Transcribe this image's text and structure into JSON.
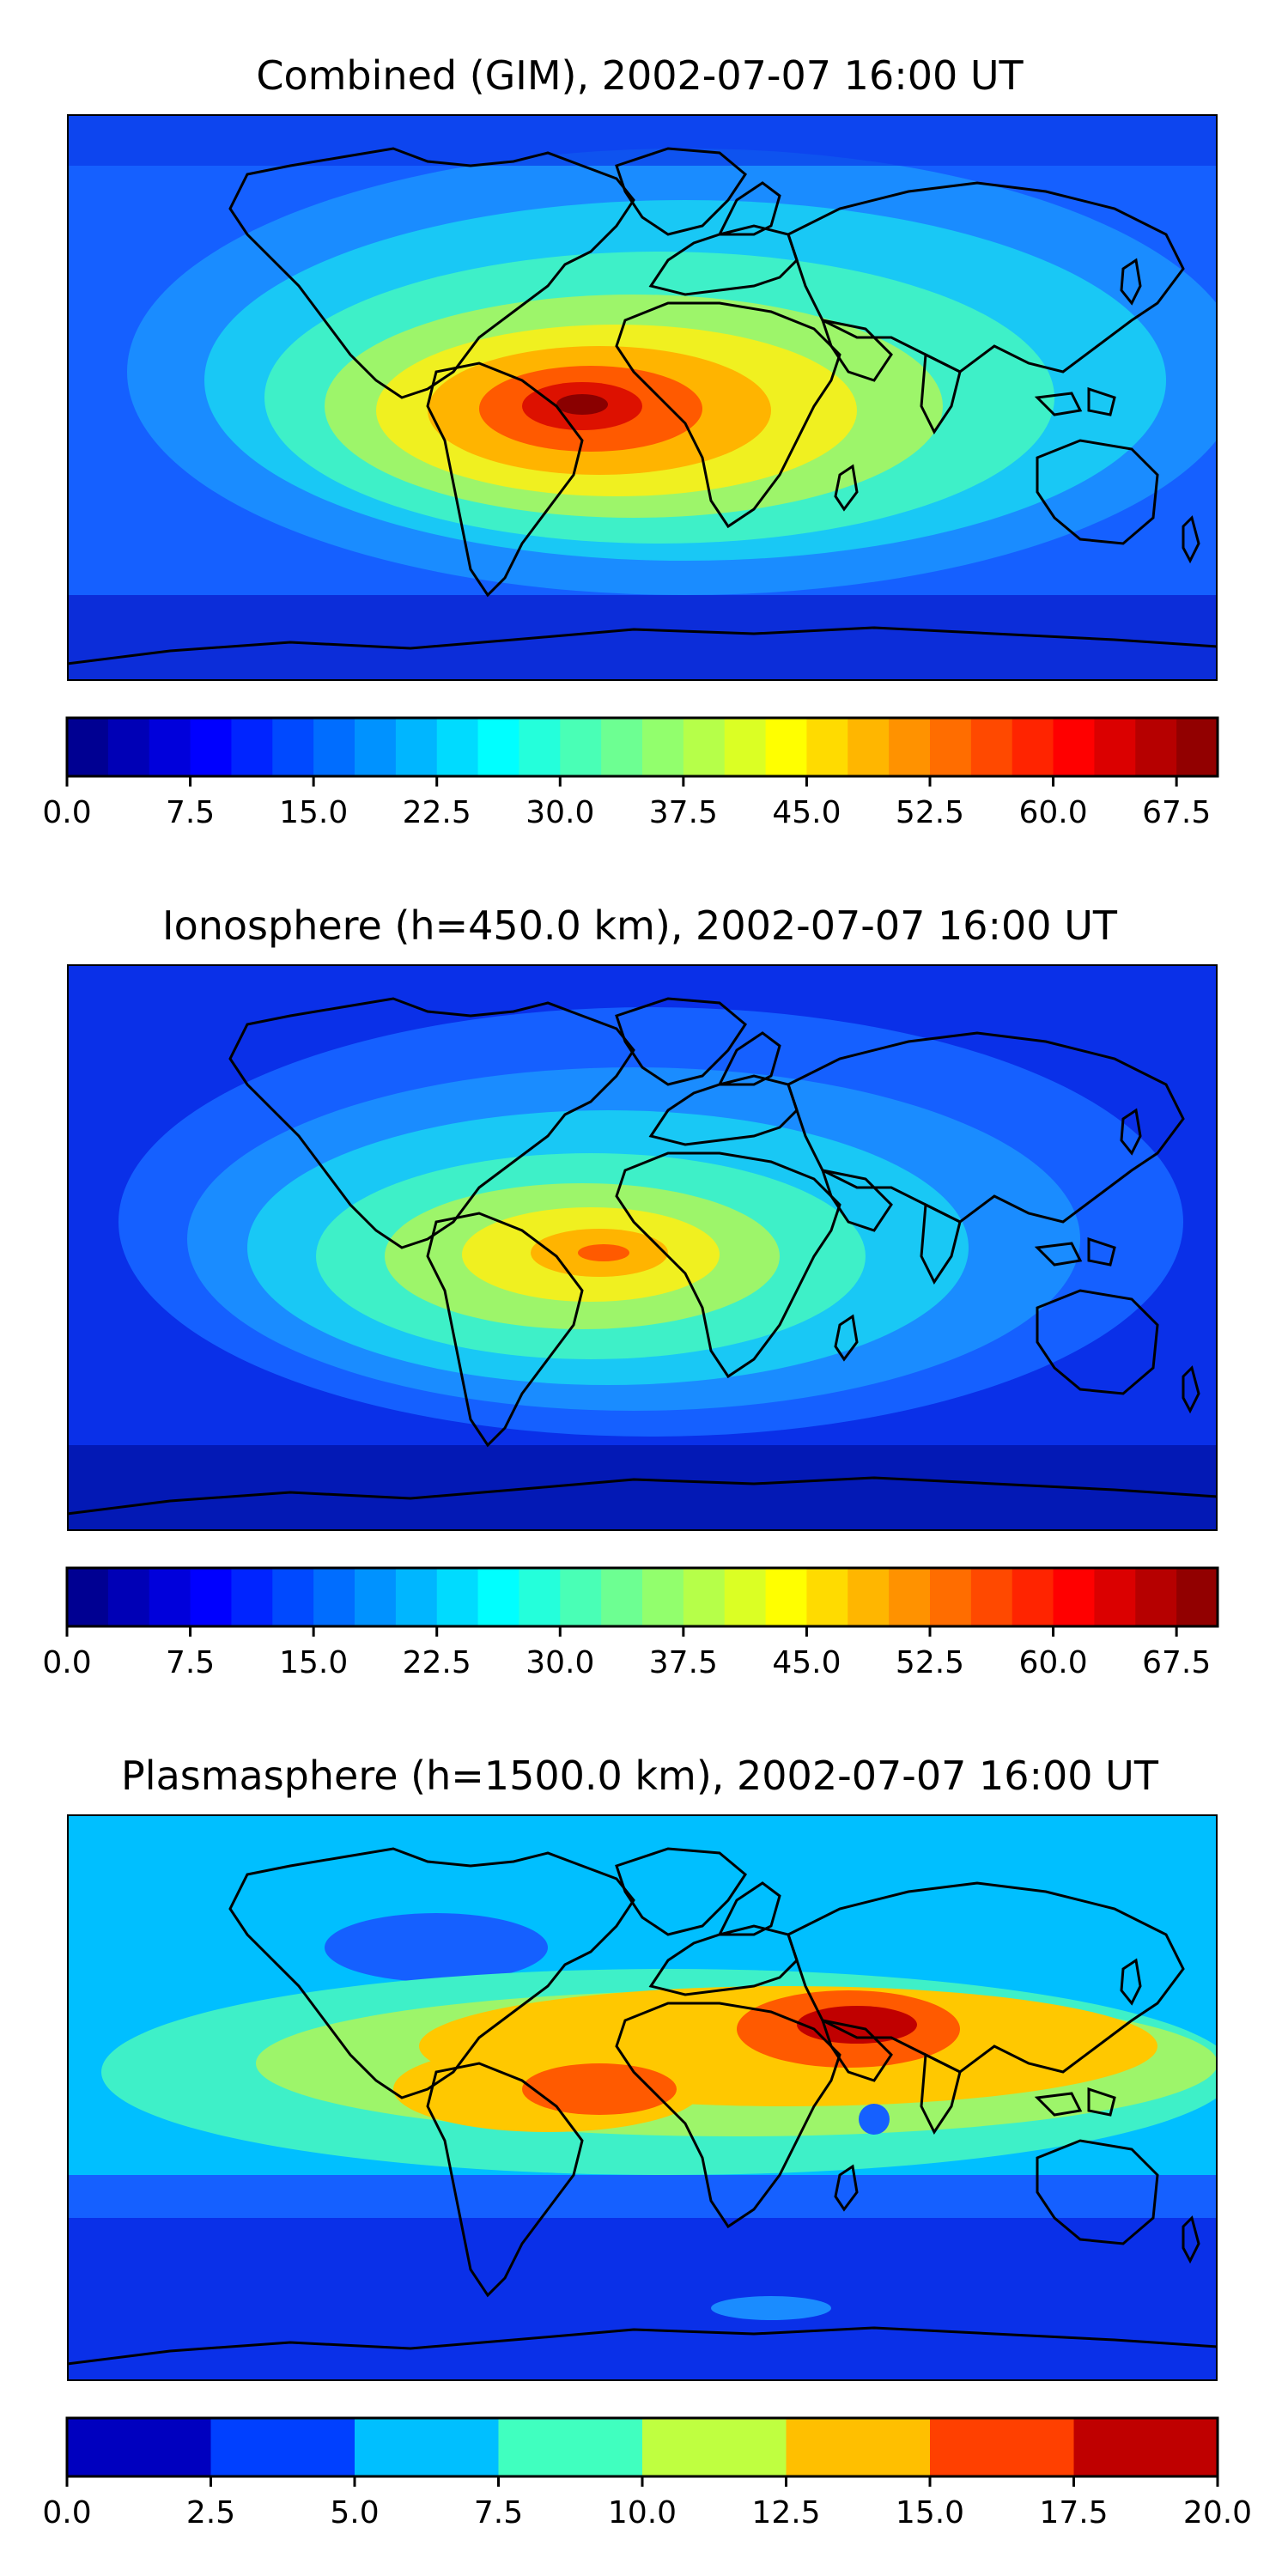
{
  "figure": {
    "panels": [
      {
        "title": "Combined (GIM), 2002-07-07 16:00 UT",
        "colorbar": {
          "vmin": 0,
          "vmax": 70,
          "levels": 28,
          "colormap": "jet",
          "tick_labels": [
            "0.0",
            "7.5",
            "15.0",
            "22.5",
            "30.0",
            "37.5",
            "45.0",
            "52.5",
            "60.0",
            "67.5"
          ]
        },
        "peak_region": "Africa / tropical Atlantic",
        "peak_value_approx": 67
      },
      {
        "title": "Ionosphere  (h=450.0 km), 2002-07-07 16:00 UT",
        "colorbar": {
          "vmin": 0,
          "vmax": 70,
          "levels": 28,
          "colormap": "jet",
          "tick_labels": [
            "0.0",
            "7.5",
            "15.0",
            "22.5",
            "30.0",
            "37.5",
            "45.0",
            "52.5",
            "60.0",
            "67.5"
          ]
        },
        "peak_region": "West Africa",
        "peak_value_approx": 52
      },
      {
        "title": "Plasmasphere (h=1500.0 km), 2002-07-07 16:00 UT",
        "colorbar": {
          "vmin": 0,
          "vmax": 20,
          "levels": 8,
          "colormap": "jet",
          "tick_labels": [
            "0.0",
            "2.5",
            "5.0",
            "7.5",
            "10.0",
            "12.5",
            "15.0",
            "17.5",
            "20.0"
          ]
        },
        "peak_region": "Arabian Peninsula / Iran",
        "peak_value_approx": 18
      }
    ],
    "colors": {
      "frame": "#000000",
      "coastline": "#000000"
    }
  }
}
